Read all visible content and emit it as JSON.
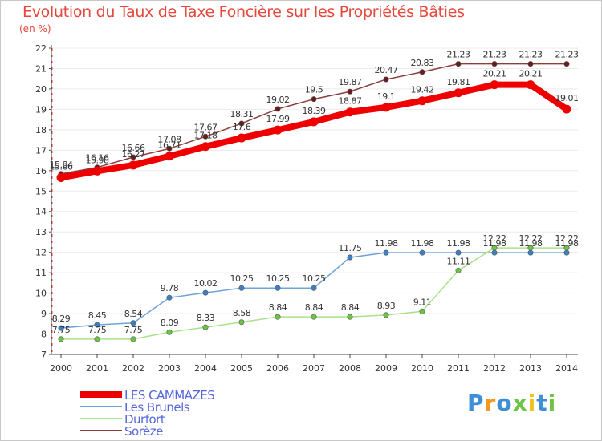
{
  "header": {
    "title": "Evolution du Taux de Taxe Foncière sur les Propriétés Bâties",
    "unit_label": "(en %)"
  },
  "logo": {
    "text": "Proxiti"
  },
  "colors": {
    "title": "#e5473c",
    "grid": "#ebebeb",
    "axis": "#444444",
    "tick_text": "#333333",
    "label_text": "#333333",
    "legend_text": "#5566dd"
  },
  "chart_data": {
    "type": "line",
    "title": "Evolution du Taux de Taxe Foncière sur les Propriétés Bâties",
    "xlabel": "",
    "ylabel": "(en %)",
    "x": [
      "2000",
      "2001",
      "2002",
      "2003",
      "2004",
      "2005",
      "2006",
      "2007",
      "2008",
      "2009",
      "2010",
      "2011",
      "2012",
      "2013",
      "2014"
    ],
    "ylim": [
      7,
      22
    ],
    "yticks": [
      7,
      8,
      9,
      10,
      11,
      12,
      13,
      14,
      15,
      16,
      17,
      18,
      19,
      20,
      21,
      22
    ],
    "grid": true,
    "legend_position": "bottom-left",
    "series": [
      {
        "name": "LES CAMMAZES",
        "color": "#ee0000",
        "marker": "#ee0000",
        "thick": true,
        "values": [
          15.66,
          15.98,
          16.27,
          16.71,
          17.18,
          17.6,
          17.99,
          18.39,
          18.87,
          19.1,
          19.42,
          19.81,
          20.21,
          20.21,
          19.01
        ],
        "labels": [
          "15.66",
          "15.98",
          "16.27",
          "16.71",
          "17.18",
          "17.6",
          "17.99",
          "18.39",
          "18.87",
          "19.1",
          "19.42",
          "19.81",
          "20.21",
          "20.21",
          "19.01"
        ]
      },
      {
        "name": "Les Brunels",
        "color": "#6fa3d6",
        "marker": "#3a80c8",
        "thick": false,
        "values": [
          8.29,
          8.45,
          8.54,
          9.78,
          10.02,
          10.25,
          10.25,
          10.25,
          11.75,
          11.98,
          11.98,
          11.98,
          11.98,
          11.98,
          11.98
        ],
        "labels": [
          "8.29",
          "8.45",
          "8.54",
          "9.78",
          "10.02",
          "10.25",
          "10.25",
          "10.25",
          "11.75",
          "11.98",
          "11.98",
          "11.98",
          "11.98",
          "11.98",
          "11.98"
        ]
      },
      {
        "name": "Durfort",
        "color": "#a9e28a",
        "marker": "#6cc444",
        "thick": false,
        "values": [
          7.75,
          7.75,
          7.75,
          8.09,
          8.33,
          8.58,
          8.84,
          8.84,
          8.84,
          8.93,
          9.11,
          11.11,
          12.22,
          12.22,
          12.22
        ],
        "labels": [
          "7.75",
          "7.75",
          "7.75",
          "8.09",
          "8.33",
          "8.58",
          "8.84",
          "8.84",
          "8.84",
          "8.93",
          "9.11",
          "11.11",
          "12.22",
          "12.22",
          "12.22"
        ]
      },
      {
        "name": "Sorèze",
        "color": "#8a3d3d",
        "marker": "#6a1a1a",
        "thick": false,
        "values": [
          15.84,
          16.16,
          16.66,
          17.08,
          17.67,
          18.31,
          19.02,
          19.5,
          19.87,
          20.47,
          20.83,
          21.23,
          21.23,
          21.23,
          21.23
        ],
        "labels": [
          "15.84",
          "16.16",
          "16.66",
          "17.08",
          "17.67",
          "18.31",
          "19.02",
          "19.5",
          "19.87",
          "20.47",
          "20.83",
          "21.23",
          "21.23",
          "21.23",
          "21.23"
        ]
      }
    ]
  }
}
